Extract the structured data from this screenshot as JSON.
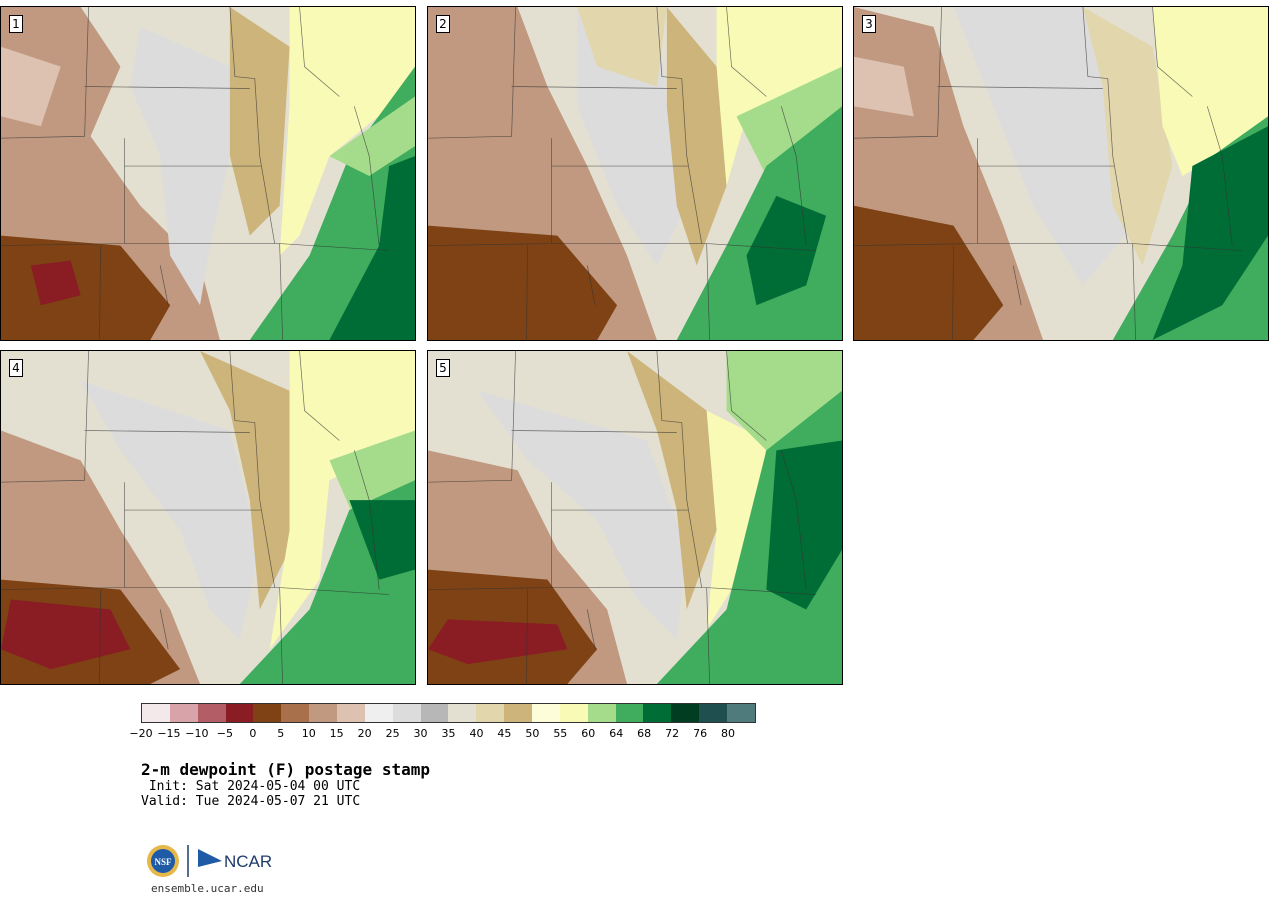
{
  "panels": [
    {
      "label": "1"
    },
    {
      "label": "2"
    },
    {
      "label": "3"
    },
    {
      "label": "4"
    },
    {
      "label": "5"
    }
  ],
  "colorbar": {
    "colors": [
      "#f3e9ea",
      "#d9a3aa",
      "#b35d66",
      "#8a1c24",
      "#7e4214",
      "#a8714c",
      "#c09980",
      "#ddc2b1",
      "#efefef",
      "#dcdcdc",
      "#b7b7b7",
      "#e3e0d2",
      "#e2d6ad",
      "#cdb47a",
      "#fdfdd9",
      "#f8fab6",
      "#a5dc8c",
      "#3fac5e",
      "#006d37",
      "#013d20",
      "#1f4f4f",
      "#4f7b7c"
    ],
    "tick_labels": [
      "−20",
      "−15",
      "−10",
      "−5",
      "0",
      "5",
      "10",
      "15",
      "20",
      "25",
      "30",
      "35",
      "40",
      "45",
      "50",
      "55",
      "60",
      "64",
      "68",
      "72",
      "76",
      "80"
    ]
  },
  "title": "2-m dewpoint (F) postage stamp",
  "init": " Init: Sat 2024-05-04 00 UTC",
  "valid": "Valid: Tue 2024-05-07 21 UTC",
  "logos": {
    "nsf": "NSF",
    "ncar": "NCAR"
  },
  "site": "ensemble.ucar.edu"
}
